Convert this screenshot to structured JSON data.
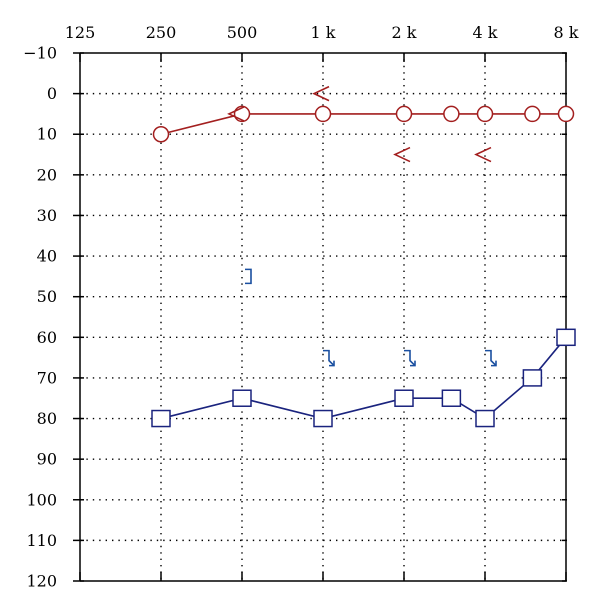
{
  "chart_data": {
    "type": "line",
    "title": "",
    "xlabel": "",
    "ylabel": "",
    "x_scale": "log2",
    "x_categories": [
      "125",
      "250",
      "500",
      "1 k",
      "2 k",
      "4 k",
      "8 k"
    ],
    "x_values_hz": [
      125,
      250,
      500,
      1000,
      2000,
      4000,
      8000
    ],
    "y_ticks": [
      -10,
      0,
      10,
      20,
      30,
      40,
      50,
      60,
      70,
      80,
      90,
      100,
      110,
      120
    ],
    "y_tick_labels": [
      "−10",
      "0",
      "10",
      "20",
      "30",
      "40",
      "50",
      "60",
      "70",
      "80",
      "90",
      "100",
      "110",
      "120"
    ],
    "ylim": [
      -10,
      120
    ],
    "y_inverted": true,
    "grid": true,
    "series": [
      {
        "marker": "circle",
        "color": "#a31f1f",
        "points": [
          {
            "x": 250,
            "y": 10
          },
          {
            "x": 500,
            "y": 5
          },
          {
            "x": 1000,
            "y": 5
          },
          {
            "x": 2000,
            "y": 5
          },
          {
            "x": 3000,
            "y": 5
          },
          {
            "x": 4000,
            "y": 5
          },
          {
            "x": 6000,
            "y": 5
          },
          {
            "x": 8000,
            "y": 5
          }
        ]
      },
      {
        "marker": "square",
        "color": "#1a237e",
        "points": [
          {
            "x": 250,
            "y": 80
          },
          {
            "x": 500,
            "y": 75
          },
          {
            "x": 1000,
            "y": 80
          },
          {
            "x": 2000,
            "y": 75
          },
          {
            "x": 3000,
            "y": 75
          },
          {
            "x": 4000,
            "y": 80
          },
          {
            "x": 6000,
            "y": 70
          },
          {
            "x": 8000,
            "y": 60
          }
        ]
      }
    ],
    "annotations": [
      {
        "symbol": "bone-right",
        "color": "#a31f1f",
        "glyph": "<",
        "points": [
          {
            "x": 500,
            "y": 5
          },
          {
            "x": 1000,
            "y": 0
          },
          {
            "x": 2000,
            "y": 15
          },
          {
            "x": 4000,
            "y": 15
          }
        ]
      },
      {
        "symbol": "bone-left-masked",
        "color": "#1a4fa0",
        "glyph": "]",
        "points": [
          {
            "x": 500,
            "y": 45
          }
        ]
      },
      {
        "symbol": "bone-left-masked-nr",
        "color": "#1a4fa0",
        "glyph": "]↘",
        "points": [
          {
            "x": 1000,
            "y": 65
          },
          {
            "x": 2000,
            "y": 65
          },
          {
            "x": 4000,
            "y": 65
          }
        ]
      }
    ]
  }
}
